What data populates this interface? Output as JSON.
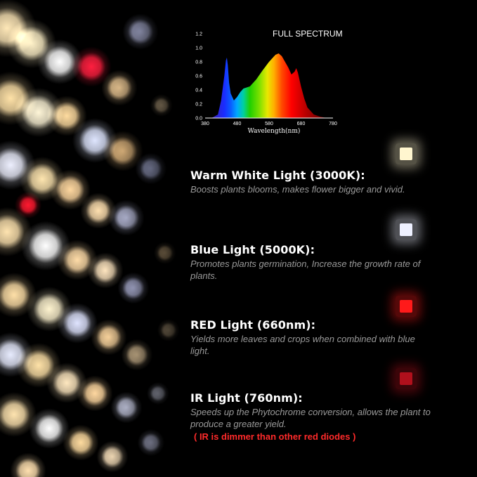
{
  "chart_data": {
    "type": "area",
    "title": "FULL SPECTRUM",
    "xlabel": "Wavelength(nm)",
    "ylabel": "",
    "xlim": [
      380,
      780
    ],
    "ylim": [
      0,
      1.2
    ],
    "x_ticks": [
      "380",
      "480",
      "580",
      "680",
      "780"
    ],
    "y_ticks": [
      "0.0",
      "0.2",
      "0.4",
      "0.6",
      "0.8",
      "1.0",
      "1.2"
    ],
    "x": [
      400,
      420,
      430,
      440,
      445,
      448,
      451,
      455,
      460,
      470,
      480,
      490,
      500,
      520,
      540,
      560,
      580,
      600,
      610,
      620,
      630,
      640,
      650,
      660,
      665,
      670,
      680,
      690,
      700,
      720,
      740,
      760
    ],
    "values": [
      0.0,
      0.05,
      0.25,
      0.6,
      0.82,
      0.86,
      0.75,
      0.5,
      0.35,
      0.25,
      0.3,
      0.37,
      0.42,
      0.45,
      0.55,
      0.68,
      0.8,
      0.9,
      0.92,
      0.88,
      0.8,
      0.72,
      0.62,
      0.66,
      0.71,
      0.65,
      0.45,
      0.28,
      0.15,
      0.05,
      0.02,
      0.0
    ]
  },
  "sections": [
    {
      "title": "Warm White Light (3000K):",
      "description": "Boosts plants blooms, makes flower bigger and vivid.",
      "chip_color": "#fff6cf"
    },
    {
      "title": "Blue Light (5000K):",
      "description": "Promotes plants germination, Increase the growth rate of plants.",
      "chip_color": "#eef0ff"
    },
    {
      "title": "RED Light (660nm):",
      "description": "Yields more leaves and crops when combined with blue light.",
      "chip_color": "#ff1a1a"
    },
    {
      "title": "IR Light (760nm):",
      "description": "Speeds up the Phytochrome conversion, allows the plant to produce a greater yield.",
      "chip_color": "#b0101c"
    }
  ],
  "note": "( IR is dimmer than  other red diodes )"
}
